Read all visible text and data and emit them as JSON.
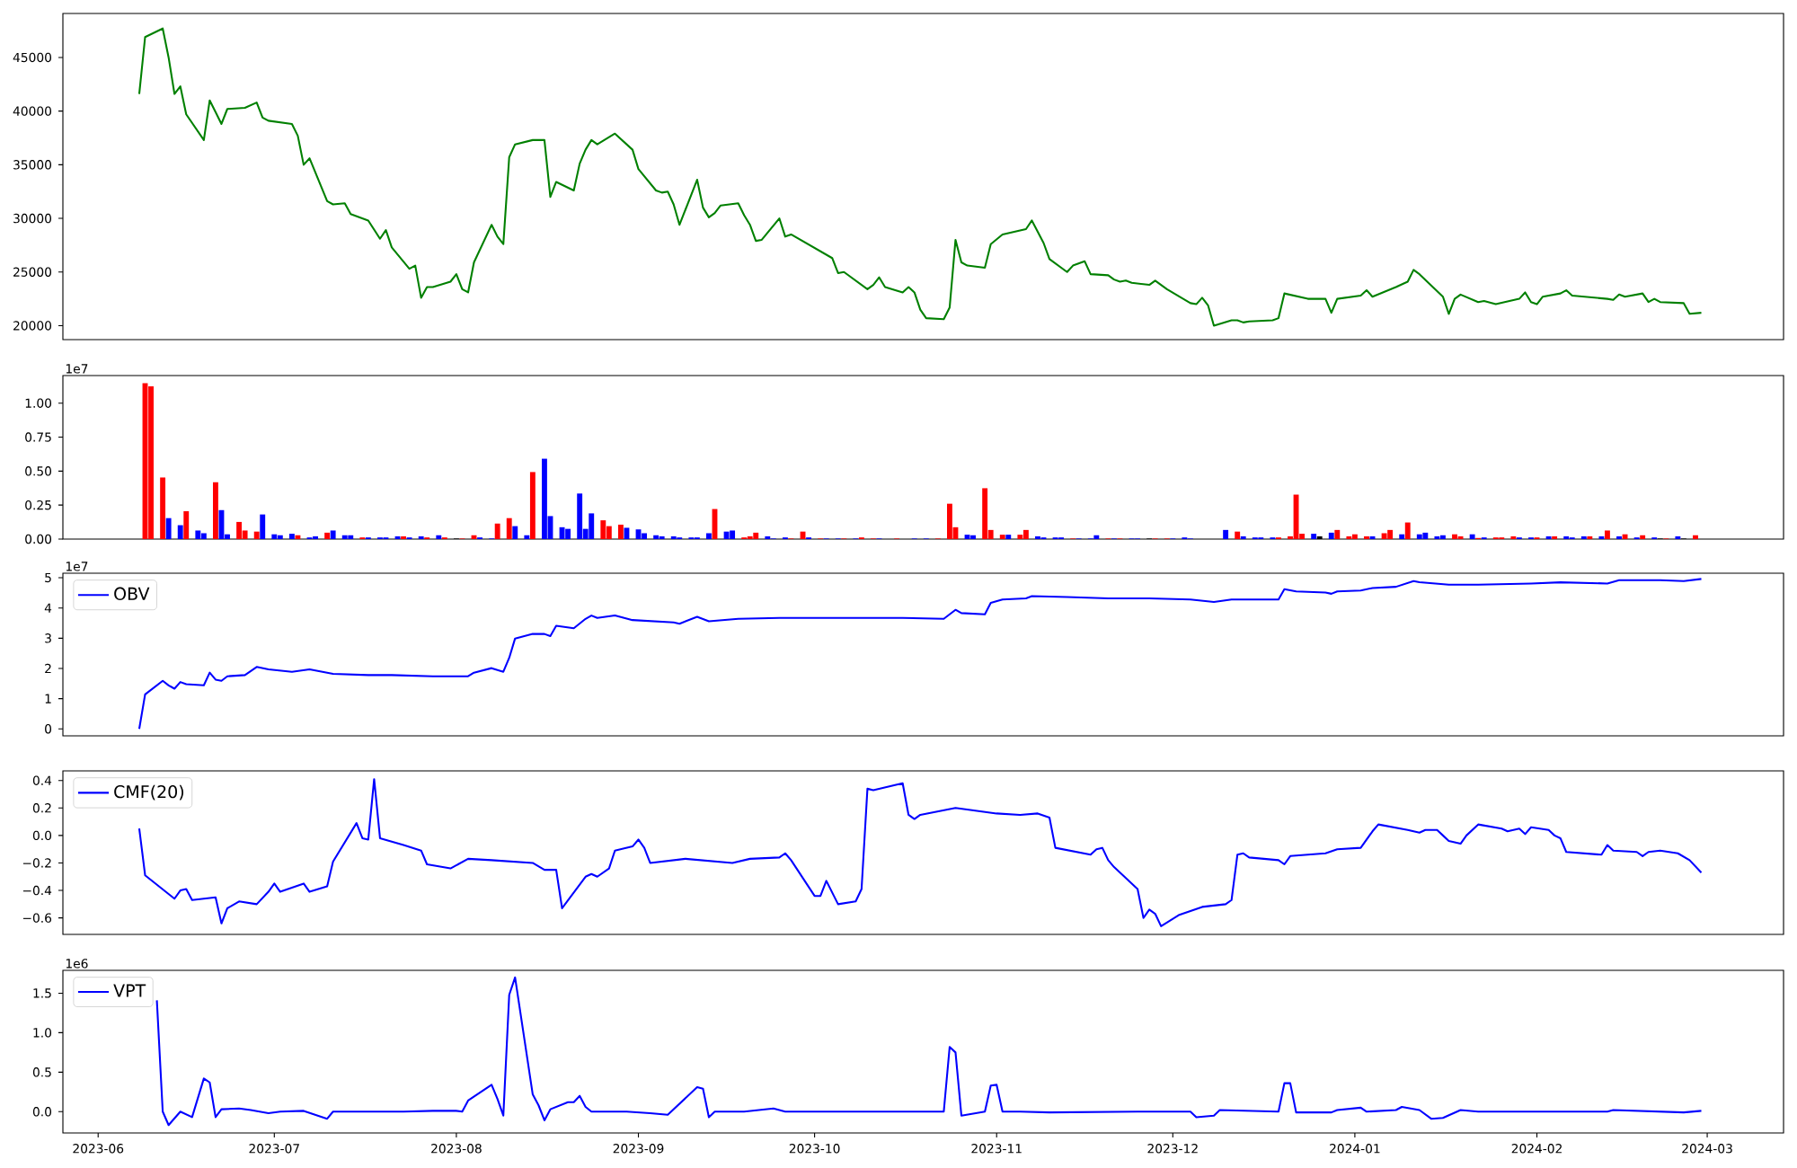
{
  "chart_data": [
    {
      "type": "line",
      "xlim": [
        "2023-05-26",
        "2024-03-14"
      ],
      "ylim": [
        18700,
        49100
      ],
      "yticks": [
        20000,
        25000,
        30000,
        35000,
        40000,
        45000
      ],
      "tick_labels": "y",
      "x": [
        "2023-06-08",
        "2023-06-09",
        "2023-06-12",
        "2023-06-13",
        "2023-06-14",
        "2023-06-15",
        "2023-06-16",
        "2023-06-19",
        "2023-06-20",
        "2023-06-21",
        "2023-06-22",
        "2023-06-23",
        "2023-06-26",
        "2023-06-28",
        "2023-06-29",
        "2023-06-30",
        "2023-07-04",
        "2023-07-05",
        "2023-07-06",
        "2023-07-07",
        "2023-07-10",
        "2023-07-11",
        "2023-07-13",
        "2023-07-14",
        "2023-07-17",
        "2023-07-19",
        "2023-07-20",
        "2023-07-21",
        "2023-07-24",
        "2023-07-25",
        "2023-07-26",
        "2023-07-27",
        "2023-07-28",
        "2023-07-31",
        "2023-08-01",
        "2023-08-02",
        "2023-08-03",
        "2023-08-04",
        "2023-08-07",
        "2023-08-08",
        "2023-08-09",
        "2023-08-10",
        "2023-08-11",
        "2023-08-14",
        "2023-08-16",
        "2023-08-17",
        "2023-08-18",
        "2023-08-21",
        "2023-08-22",
        "2023-08-23",
        "2023-08-24",
        "2023-08-25",
        "2023-08-28",
        "2023-08-31",
        "2023-09-01",
        "2023-09-04",
        "2023-09-05",
        "2023-09-06",
        "2023-09-07",
        "2023-09-08",
        "2023-09-11",
        "2023-09-12",
        "2023-09-13",
        "2023-09-14",
        "2023-09-15",
        "2023-09-18",
        "2023-09-19",
        "2023-09-20",
        "2023-09-21",
        "2023-09-22",
        "2023-09-25",
        "2023-09-26",
        "2023-09-27",
        "2023-10-04",
        "2023-10-05",
        "2023-10-06",
        "2023-10-10",
        "2023-10-11",
        "2023-10-12",
        "2023-10-13",
        "2023-10-16",
        "2023-10-17",
        "2023-10-18",
        "2023-10-19",
        "2023-10-20",
        "2023-10-23",
        "2023-10-24",
        "2023-10-25",
        "2023-10-26",
        "2023-10-27",
        "2023-10-30",
        "2023-10-31",
        "2023-11-02",
        "2023-11-06",
        "2023-11-07",
        "2023-11-09",
        "2023-11-10",
        "2023-11-13",
        "2023-11-14",
        "2023-11-16",
        "2023-11-17",
        "2023-11-20",
        "2023-11-21",
        "2023-11-22",
        "2023-11-23",
        "2023-11-24",
        "2023-11-27",
        "2023-11-28",
        "2023-11-30",
        "2023-12-04",
        "2023-12-05",
        "2023-12-06",
        "2023-12-07",
        "2023-12-08",
        "2023-12-11",
        "2023-12-12",
        "2023-12-13",
        "2023-12-14",
        "2023-12-18",
        "2023-12-19",
        "2023-12-20",
        "2023-12-24",
        "2023-12-27",
        "2023-12-28",
        "2023-12-29",
        "2024-01-02",
        "2024-01-03",
        "2024-01-04",
        "2024-01-08",
        "2024-01-10",
        "2024-01-11",
        "2024-01-12",
        "2024-01-16",
        "2024-01-17",
        "2024-01-18",
        "2024-01-19",
        "2024-01-22",
        "2024-01-23",
        "2024-01-25",
        "2024-01-29",
        "2024-01-30",
        "2024-01-31",
        "2024-02-01",
        "2024-02-02",
        "2024-02-05",
        "2024-02-06",
        "2024-02-07",
        "2024-02-13",
        "2024-02-14",
        "2024-02-15",
        "2024-02-16",
        "2024-02-19",
        "2024-02-20",
        "2024-02-21",
        "2024-02-22",
        "2024-02-26",
        "2024-02-27",
        "2024-02-29"
      ],
      "series": [
        {
          "color": "#008000",
          "values": [
            41600,
            46900,
            47700,
            45000,
            41600,
            42300,
            39700,
            37300,
            41000,
            39900,
            38800,
            40200,
            40300,
            40800,
            39400,
            39100,
            38800,
            37700,
            35000,
            35600,
            31600,
            31300,
            31400,
            30400,
            29800,
            28100,
            28900,
            27300,
            25300,
            25600,
            22600,
            23600,
            23600,
            24100,
            24800,
            23400,
            23100,
            25900,
            29400,
            28300,
            27600,
            35700,
            36900,
            37300,
            37300,
            32000,
            33400,
            32600,
            35100,
            36400,
            37300,
            36900,
            37900,
            36400,
            34600,
            32600,
            32400,
            32500,
            31300,
            29400,
            33600,
            31000,
            30100,
            30500,
            31200,
            31400,
            30300,
            29400,
            27900,
            28000,
            30000,
            28300,
            28500,
            26300,
            24900,
            25000,
            23400,
            23800,
            24500,
            23600,
            23100,
            23600,
            23100,
            21500,
            20700,
            20600,
            21700,
            28000,
            25900,
            25600,
            25400,
            27600,
            28500,
            29000,
            29800,
            27700,
            26200,
            25000,
            25600,
            26000,
            24800,
            24700,
            24300,
            24100,
            24200,
            24000,
            23800,
            24200,
            23400,
            22100,
            22000,
            22600,
            21900,
            20000,
            20500,
            20500,
            20300,
            20400,
            20500,
            20700,
            23000,
            22500,
            22500,
            21200,
            22500,
            22800,
            23300,
            22700,
            23600,
            24100,
            25200,
            24800,
            22700,
            21100,
            22500,
            22900,
            22200,
            22300,
            22000,
            22500,
            23100,
            22200,
            22000,
            22700,
            23000,
            23300,
            22800,
            22500,
            22400,
            22900,
            22700,
            23000,
            22200,
            22500,
            22200,
            22100,
            21100,
            21200
          ]
        }
      ]
    },
    {
      "type": "bar",
      "xlim": [
        "2023-05-26",
        "2024-03-14"
      ],
      "ylim": [
        0,
        1.203
      ],
      "tick_labels": "y",
      "yticks": [
        {
          "value": 0,
          "label": "0.00"
        },
        0.25,
        {
          "value": 0.5,
          "label": "0.50"
        },
        0.75,
        {
          "value": 1,
          "label": "1.00"
        }
      ],
      "annotations": [
        "1e7"
      ],
      "x": [
        "2023-06-09",
        "2023-06-10",
        "2023-06-12",
        "2023-06-13",
        "2023-06-15",
        "2023-06-16",
        "2023-06-18",
        "2023-06-19",
        "2023-06-21",
        "2023-06-22",
        "2023-06-23",
        "2023-06-25",
        "2023-06-26",
        "2023-06-28",
        "2023-06-29",
        "2023-07-01",
        "2023-07-02",
        "2023-07-04",
        "2023-07-05",
        "2023-07-07",
        "2023-07-08",
        "2023-07-10",
        "2023-07-11",
        "2023-07-13",
        "2023-07-14",
        "2023-07-16",
        "2023-07-17",
        "2023-07-19",
        "2023-07-20",
        "2023-07-22",
        "2023-07-23",
        "2023-07-24",
        "2023-07-26",
        "2023-07-27",
        "2023-07-29",
        "2023-07-30",
        "2023-08-01",
        "2023-08-02",
        "2023-08-04",
        "2023-08-05",
        "2023-08-07",
        "2023-08-08",
        "2023-08-10",
        "2023-08-11",
        "2023-08-13",
        "2023-08-14",
        "2023-08-16",
        "2023-08-17",
        "2023-08-19",
        "2023-08-20",
        "2023-08-22",
        "2023-08-23",
        "2023-08-24",
        "2023-08-26",
        "2023-08-27",
        "2023-08-29",
        "2023-08-30",
        "2023-09-01",
        "2023-09-02",
        "2023-09-04",
        "2023-09-05",
        "2023-09-07",
        "2023-09-08",
        "2023-09-10",
        "2023-09-11",
        "2023-09-13",
        "2023-09-14",
        "2023-09-16",
        "2023-09-17",
        "2023-09-19",
        "2023-09-20",
        "2023-09-21",
        "2023-09-23",
        "2023-09-24",
        "2023-09-26",
        "2023-09-27",
        "2023-09-29",
        "2023-09-30",
        "2023-10-02",
        "2023-10-03",
        "2023-10-05",
        "2023-10-06",
        "2023-10-08",
        "2023-10-09",
        "2023-10-11",
        "2023-10-12",
        "2023-10-15",
        "2023-10-18",
        "2023-10-20",
        "2023-10-22",
        "2023-10-24",
        "2023-10-25",
        "2023-10-27",
        "2023-10-28",
        "2023-10-30",
        "2023-10-31",
        "2023-11-02",
        "2023-11-03",
        "2023-11-05",
        "2023-11-06",
        "2023-11-08",
        "2023-11-09",
        "2023-11-11",
        "2023-11-12",
        "2023-11-14",
        "2023-11-15",
        "2023-11-17",
        "2023-11-18",
        "2023-11-20",
        "2023-11-21",
        "2023-11-22",
        "2023-11-24",
        "2023-11-25",
        "2023-11-27",
        "2023-11-28",
        "2023-11-30",
        "2023-12-01",
        "2023-12-03",
        "2023-12-04",
        "2023-12-10",
        "2023-12-12",
        "2023-12-13",
        "2023-12-15",
        "2023-12-16",
        "2023-12-18",
        "2023-12-19",
        "2023-12-21",
        "2023-12-22",
        "2023-12-23",
        "2023-12-25",
        "2023-12-26",
        "2023-12-28",
        "2023-12-29",
        "2023-12-31",
        "2024-01-01",
        "2024-01-03",
        "2024-01-04",
        "2024-01-06",
        "2024-01-07",
        "2024-01-09",
        "2024-01-10",
        "2024-01-12",
        "2024-01-13",
        "2024-01-15",
        "2024-01-16",
        "2024-01-18",
        "2024-01-19",
        "2024-01-21",
        "2024-01-22",
        "2024-01-23",
        "2024-01-25",
        "2024-01-26",
        "2024-01-28",
        "2024-01-29",
        "2024-01-31",
        "2024-02-01",
        "2024-02-03",
        "2024-02-04",
        "2024-02-06",
        "2024-02-07",
        "2024-02-09",
        "2024-02-10",
        "2024-02-12",
        "2024-02-13",
        "2024-02-15",
        "2024-02-16",
        "2024-02-18",
        "2024-02-19",
        "2024-02-21",
        "2024-02-22",
        "2024-02-23",
        "2024-02-25",
        "2024-02-26",
        "2024-02-28"
      ],
      "values": [
        1.147,
        1.123,
        0.453,
        0.154,
        0.102,
        0.205,
        0.063,
        0.043,
        0.418,
        0.213,
        0.035,
        0.126,
        0.063,
        0.055,
        0.181,
        0.035,
        0.028,
        0.039,
        0.028,
        0.012,
        0.02,
        0.047,
        0.063,
        0.028,
        0.028,
        0.012,
        0.012,
        0.012,
        0.012,
        0.02,
        0.02,
        0.012,
        0.02,
        0.012,
        0.028,
        0.012,
        0.004,
        0.004,
        0.028,
        0.012,
        0.004,
        0.114,
        0.154,
        0.095,
        0.028,
        0.493,
        0.591,
        0.169,
        0.087,
        0.075,
        0.335,
        0.075,
        0.189,
        0.138,
        0.095,
        0.106,
        0.083,
        0.071,
        0.043,
        0.028,
        0.02,
        0.02,
        0.012,
        0.012,
        0.012,
        0.043,
        0.221,
        0.055,
        0.063,
        0.012,
        0.02,
        0.047,
        0.02,
        0.004,
        0.012,
        0.004,
        0.055,
        0.012,
        0.004,
        0.004,
        0.004,
        0.004,
        0.004,
        0.012,
        0.004,
        0.004,
        0.004,
        0.004,
        0.004,
        0.004,
        0.26,
        0.087,
        0.032,
        0.028,
        0.374,
        0.067,
        0.032,
        0.032,
        0.032,
        0.067,
        0.02,
        0.012,
        0.012,
        0.012,
        0.004,
        0.004,
        0.004,
        0.028,
        0.004,
        0.004,
        0.004,
        0.004,
        0.004,
        0.004,
        0.004,
        0.004,
        0.004,
        0.012,
        0.004,
        0.067,
        0.055,
        0.02,
        0.012,
        0.012,
        0.012,
        0.012,
        0.02,
        0.327,
        0.039,
        0.039,
        0.02,
        0.047,
        0.067,
        0.02,
        0.035,
        0.02,
        0.02,
        0.043,
        0.067,
        0.035,
        0.122,
        0.035,
        0.047,
        0.02,
        0.028,
        0.035,
        0.02,
        0.035,
        0.008,
        0.012,
        0.012,
        0.012,
        0.02,
        0.012,
        0.012,
        0.012,
        0.02,
        0.02,
        0.02,
        0.012,
        0.02,
        0.02,
        0.02,
        0.063,
        0.02,
        0.035,
        0.012,
        0.028,
        0.012,
        0.004,
        0.004,
        0.02,
        0.004,
        0.028
      ],
      "colors": [
        "#ff0000",
        "#ff0000",
        "#ff0000",
        "#0000ff",
        "#0000ff",
        "#ff0000",
        "#0000ff",
        "#0000ff",
        "#ff0000",
        "#0000ff",
        "#0000ff",
        "#ff0000",
        "#ff0000",
        "#ff0000",
        "#0000ff",
        "#0000ff",
        "#0000ff",
        "#0000ff",
        "#ff0000",
        "#0000ff",
        "#0000ff",
        "#ff0000",
        "#0000ff",
        "#0000ff",
        "#0000ff",
        "#ff0000",
        "#0000ff",
        "#0000ff",
        "#0000ff",
        "#0000ff",
        "#ff0000",
        "#0000ff",
        "#0000ff",
        "#ff0000",
        "#0000ff",
        "#ff0000",
        "#000000",
        "#ff0000",
        "#ff0000",
        "#0000ff",
        "#0000ff",
        "#ff0000",
        "#ff0000",
        "#0000ff",
        "#0000ff",
        "#ff0000",
        "#0000ff",
        "#0000ff",
        "#0000ff",
        "#0000ff",
        "#0000ff",
        "#0000ff",
        "#0000ff",
        "#ff0000",
        "#ff0000",
        "#ff0000",
        "#0000ff",
        "#0000ff",
        "#0000ff",
        "#0000ff",
        "#0000ff",
        "#0000ff",
        "#0000ff",
        "#0000ff",
        "#0000ff",
        "#0000ff",
        "#ff0000",
        "#0000ff",
        "#0000ff",
        "#ff0000",
        "#ff0000",
        "#ff0000",
        "#0000ff",
        "#0000ff",
        "#0000ff",
        "#ff0000",
        "#ff0000",
        "#0000ff",
        "#ff0000",
        "#0000ff",
        "#0000ff",
        "#ff0000",
        "#0000ff",
        "#ff0000",
        "#ff0000",
        "#0000ff",
        "#ff0000",
        "#0000ff",
        "#0000ff",
        "#ff0000",
        "#ff0000",
        "#ff0000",
        "#0000ff",
        "#0000ff",
        "#ff0000",
        "#ff0000",
        "#ff0000",
        "#0000ff",
        "#ff0000",
        "#ff0000",
        "#0000ff",
        "#0000ff",
        "#0000ff",
        "#0000ff",
        "#ff0000",
        "#0000ff",
        "#0000ff",
        "#0000ff",
        "#ff0000",
        "#0000ff",
        "#ff0000",
        "#0000ff",
        "#0000ff",
        "#000000",
        "#ff0000",
        "#ff0000",
        "#0000ff",
        "#0000ff",
        "#0000ff",
        "#0000ff",
        "#ff0000",
        "#0000ff",
        "#0000ff",
        "#0000ff",
        "#0000ff",
        "#ff0000",
        "#ff0000",
        "#ff0000",
        "#ff0000",
        "#0000ff",
        "#000000",
        "#0000ff",
        "#ff0000",
        "#ff0000",
        "#ff0000",
        "#ff0000",
        "#0000ff",
        "#ff0000",
        "#ff0000",
        "#0000ff",
        "#ff0000",
        "#0000ff",
        "#0000ff",
        "#0000ff",
        "#0000ff",
        "#ff0000",
        "#ff0000",
        "#0000ff",
        "#ff0000",
        "#0000ff",
        "#ff0000",
        "#ff0000",
        "#ff0000",
        "#0000ff",
        "#0000ff",
        "#ff0000",
        "#0000ff",
        "#ff0000",
        "#0000ff",
        "#0000ff",
        "#0000ff",
        "#ff0000",
        "#0000ff",
        "#ff0000",
        "#0000ff",
        "#ff0000",
        "#0000ff",
        "#ff0000",
        "#0000ff",
        "#000000",
        "#ff0000",
        "#0000ff",
        "#000000",
        "#ff0000"
      ]
    },
    {
      "type": "line",
      "xlim": [
        "2023-05-26",
        "2024-03-14"
      ],
      "ylim": [
        -0.23,
        5.15
      ],
      "tick_labels": "y",
      "legend": "top left",
      "yticks": [
        0,
        1,
        2,
        3,
        4,
        5
      ],
      "annotations": [
        "1e7"
      ],
      "x": [
        "2023-06-08",
        "2023-06-09",
        "2023-06-12",
        "2023-06-13",
        "2023-06-14",
        "2023-06-15",
        "2023-06-16",
        "2023-06-19",
        "2023-06-20",
        "2023-06-21",
        "2023-06-22",
        "2023-06-23",
        "2023-06-26",
        "2023-06-28",
        "2023-06-30",
        "2023-07-04",
        "2023-07-07",
        "2023-07-11",
        "2023-07-17",
        "2023-07-21",
        "2023-07-28",
        "2023-08-03",
        "2023-08-04",
        "2023-08-07",
        "2023-08-09",
        "2023-08-10",
        "2023-08-11",
        "2023-08-14",
        "2023-08-16",
        "2023-08-17",
        "2023-08-18",
        "2023-08-21",
        "2023-08-23",
        "2023-08-24",
        "2023-08-25",
        "2023-08-28",
        "2023-08-31",
        "2023-09-07",
        "2023-09-08",
        "2023-09-11",
        "2023-09-13",
        "2023-09-18",
        "2023-09-25",
        "2023-10-04",
        "2023-10-16",
        "2023-10-23",
        "2023-10-25",
        "2023-10-26",
        "2023-10-30",
        "2023-10-31",
        "2023-11-02",
        "2023-11-06",
        "2023-11-07",
        "2023-11-13",
        "2023-11-20",
        "2023-11-27",
        "2023-12-04",
        "2023-12-08",
        "2023-12-11",
        "2023-12-19",
        "2023-12-20",
        "2023-12-22",
        "2023-12-27",
        "2023-12-28",
        "2023-12-29",
        "2024-01-02",
        "2024-01-04",
        "2024-01-08",
        "2024-01-11",
        "2024-01-12",
        "2024-01-17",
        "2024-01-22",
        "2024-01-31",
        "2024-02-05",
        "2024-02-13",
        "2024-02-15",
        "2024-02-22",
        "2024-02-26",
        "2024-02-29"
      ],
      "series": [
        {
          "name": "OBV",
          "color": "#0000ff",
          "values": [
            0,
            1.14,
            1.59,
            1.44,
            1.33,
            1.55,
            1.48,
            1.44,
            1.86,
            1.63,
            1.59,
            1.74,
            1.78,
            2.05,
            1.97,
            1.89,
            1.97,
            1.82,
            1.78,
            1.78,
            1.74,
            1.74,
            1.86,
            2.01,
            1.89,
            2.35,
            2.99,
            3.14,
            3.14,
            3.07,
            3.41,
            3.33,
            3.64,
            3.75,
            3.67,
            3.75,
            3.6,
            3.52,
            3.48,
            3.71,
            3.56,
            3.64,
            3.67,
            3.67,
            3.67,
            3.64,
            3.94,
            3.83,
            3.79,
            4.17,
            4.28,
            4.32,
            4.39,
            4.36,
            4.32,
            4.32,
            4.28,
            4.2,
            4.28,
            4.28,
            4.62,
            4.55,
            4.51,
            4.47,
            4.55,
            4.58,
            4.66,
            4.7,
            4.89,
            4.85,
            4.77,
            4.77,
            4.81,
            4.85,
            4.81,
            4.92,
            4.92,
            4.89,
            4.96
          ]
        }
      ]
    },
    {
      "type": "line",
      "xlim": [
        "2023-05-26",
        "2024-03-14"
      ],
      "ylim": [
        -0.72,
        0.47
      ],
      "tick_labels": "y",
      "legend": "top left",
      "yticks": [
        {
          "value": -0.6,
          "label": "−0.6"
        },
        {
          "value": -0.4,
          "label": "−0.4"
        },
        {
          "value": -0.2,
          "label": "−0.2"
        },
        {
          "value": 0,
          "label": "0.0"
        },
        0.2,
        0.4
      ],
      "x": [
        "2023-06-08",
        "2023-06-09",
        "2023-06-14",
        "2023-06-15",
        "2023-06-16",
        "2023-06-17",
        "2023-06-21",
        "2023-06-22",
        "2023-06-23",
        "2023-06-25",
        "2023-06-28",
        "2023-06-30",
        "2023-07-01",
        "2023-07-02",
        "2023-07-06",
        "2023-07-07",
        "2023-07-10",
        "2023-07-11",
        "2023-07-15",
        "2023-07-16",
        "2023-07-17",
        "2023-07-18",
        "2023-07-19",
        "2023-07-23",
        "2023-07-26",
        "2023-07-27",
        "2023-07-31",
        "2023-08-03",
        "2023-08-07",
        "2023-08-14",
        "2023-08-16",
        "2023-08-18",
        "2023-08-19",
        "2023-08-23",
        "2023-08-24",
        "2023-08-25",
        "2023-08-27",
        "2023-08-28",
        "2023-08-31",
        "2023-09-01",
        "2023-09-02",
        "2023-09-03",
        "2023-09-09",
        "2023-09-17",
        "2023-09-20",
        "2023-09-25",
        "2023-09-26",
        "2023-09-27",
        "2023-10-01",
        "2023-10-02",
        "2023-10-03",
        "2023-10-05",
        "2023-10-08",
        "2023-10-09",
        "2023-10-10",
        "2023-10-11",
        "2023-10-16",
        "2023-10-17",
        "2023-10-18",
        "2023-10-19",
        "2023-10-25",
        "2023-11-01",
        "2023-11-05",
        "2023-11-08",
        "2023-11-10",
        "2023-11-11",
        "2023-11-17",
        "2023-11-18",
        "2023-11-19",
        "2023-11-20",
        "2023-11-21",
        "2023-11-25",
        "2023-11-26",
        "2023-11-27",
        "2023-11-28",
        "2023-11-29",
        "2023-12-02",
        "2023-12-04",
        "2023-12-06",
        "2023-12-10",
        "2023-12-11",
        "2023-12-12",
        "2023-12-13",
        "2023-12-14",
        "2023-12-19",
        "2023-12-20",
        "2023-12-21",
        "2023-12-27",
        "2023-12-29",
        "2024-01-02",
        "2024-01-04",
        "2024-01-05",
        "2024-01-10",
        "2024-01-12",
        "2024-01-13",
        "2024-01-15",
        "2024-01-16",
        "2024-01-17",
        "2024-01-19",
        "2024-01-20",
        "2024-01-22",
        "2024-01-26",
        "2024-01-27",
        "2024-01-29",
        "2024-01-30",
        "2024-01-31",
        "2024-02-03",
        "2024-02-04",
        "2024-02-05",
        "2024-02-06",
        "2024-02-12",
        "2024-02-13",
        "2024-02-14",
        "2024-02-18",
        "2024-02-19",
        "2024-02-20",
        "2024-02-22",
        "2024-02-25",
        "2024-02-27",
        "2024-02-29"
      ],
      "series": [
        {
          "name": "CMF(20)",
          "color": "#0000ff",
          "values": [
            0.05,
            -0.29,
            -0.46,
            -0.4,
            -0.39,
            -0.47,
            -0.45,
            -0.64,
            -0.53,
            -0.48,
            -0.5,
            -0.41,
            -0.35,
            -0.41,
            -0.35,
            -0.41,
            -0.37,
            -0.19,
            0.09,
            -0.02,
            -0.03,
            0.41,
            -0.02,
            -0.07,
            -0.11,
            -0.21,
            -0.24,
            -0.17,
            -0.18,
            -0.2,
            -0.25,
            -0.25,
            -0.53,
            -0.3,
            -0.28,
            -0.3,
            -0.24,
            -0.11,
            -0.08,
            -0.03,
            -0.09,
            -0.2,
            -0.17,
            -0.2,
            -0.17,
            -0.16,
            -0.13,
            -0.18,
            -0.44,
            -0.44,
            -0.33,
            -0.5,
            -0.48,
            -0.39,
            0.34,
            0.33,
            0.38,
            0.15,
            0.12,
            0.15,
            0.2,
            0.16,
            0.15,
            0.16,
            0.13,
            -0.09,
            -0.14,
            -0.1,
            -0.09,
            -0.18,
            -0.23,
            -0.39,
            -0.6,
            -0.54,
            -0.57,
            -0.66,
            -0.58,
            -0.55,
            -0.52,
            -0.5,
            -0.47,
            -0.14,
            -0.13,
            -0.16,
            -0.18,
            -0.21,
            -0.15,
            -0.13,
            -0.1,
            -0.09,
            0.03,
            0.08,
            0.04,
            0.02,
            0.04,
            0.04,
            0.0,
            -0.04,
            -0.06,
            0.0,
            0.08,
            0.05,
            0.03,
            0.05,
            0.01,
            0.06,
            0.04,
            0.0,
            -0.02,
            -0.12,
            -0.14,
            -0.07,
            -0.11,
            -0.12,
            -0.15,
            -0.12,
            -0.11,
            -0.13,
            -0.18,
            -0.27
          ]
        }
      ]
    },
    {
      "type": "line",
      "xlim": [
        "2023-05-26",
        "2024-03-14"
      ],
      "ylim": [
        -0.27,
        1.79
      ],
      "legend": "top left",
      "xticks": [
        "2023-06",
        "2023-07",
        "2023-08",
        "2023-09",
        "2023-10",
        "2023-11",
        "2023-12",
        "2024-01",
        "2024-02",
        "2024-03"
      ],
      "yticks": [
        {
          "value": 0,
          "label": "0.0"
        },
        0.5,
        {
          "value": 1,
          "label": "1.0"
        },
        1.5
      ],
      "annotations": [
        "1e6"
      ],
      "x": [
        "2023-06-11",
        "2023-06-12",
        "2023-06-13",
        "2023-06-15",
        "2023-06-17",
        "2023-06-19",
        "2023-06-20",
        "2023-06-21",
        "2023-06-22",
        "2023-06-25",
        "2023-06-27",
        "2023-06-30",
        "2023-07-02",
        "2023-07-06",
        "2023-07-10",
        "2023-07-11",
        "2023-07-20",
        "2023-07-23",
        "2023-07-28",
        "2023-08-01",
        "2023-08-02",
        "2023-08-03",
        "2023-08-07",
        "2023-08-08",
        "2023-08-09",
        "2023-08-10",
        "2023-08-11",
        "2023-08-14",
        "2023-08-15",
        "2023-08-16",
        "2023-08-17",
        "2023-08-20",
        "2023-08-21",
        "2023-08-22",
        "2023-08-23",
        "2023-08-24",
        "2023-08-30",
        "2023-09-03",
        "2023-09-06",
        "2023-09-11",
        "2023-09-12",
        "2023-09-13",
        "2023-09-14",
        "2023-09-19",
        "2023-09-24",
        "2023-09-26",
        "2023-10-04",
        "2023-10-14",
        "2023-10-23",
        "2023-10-24",
        "2023-10-25",
        "2023-10-26",
        "2023-10-30",
        "2023-10-31",
        "2023-11-01",
        "2023-11-02",
        "2023-11-05",
        "2023-11-10",
        "2023-11-25",
        "2023-12-04",
        "2023-12-05",
        "2023-12-08",
        "2023-12-09",
        "2023-12-19",
        "2023-12-20",
        "2023-12-21",
        "2023-12-22",
        "2023-12-28",
        "2023-12-29",
        "2024-01-02",
        "2024-01-03",
        "2024-01-08",
        "2024-01-09",
        "2024-01-12",
        "2024-01-14",
        "2024-01-16",
        "2024-01-19",
        "2024-01-22",
        "2024-01-31",
        "2024-02-13",
        "2024-02-14",
        "2024-02-22",
        "2024-02-26",
        "2024-02-29"
      ],
      "series": [
        {
          "name": "VPT",
          "color": "#0000ff",
          "values": [
            1.41,
            0,
            -0.17,
            0,
            -0.07,
            0.42,
            0.37,
            -0.07,
            0.03,
            0.04,
            0.02,
            -0.02,
            0,
            0.01,
            -0.09,
            0,
            0,
            0,
            0.01,
            0.01,
            0,
            0.14,
            0.34,
            0.16,
            -0.05,
            1.48,
            1.7,
            0.22,
            0.08,
            -0.11,
            0.03,
            0.12,
            0.12,
            0.2,
            0.06,
            0,
            0,
            -0.02,
            -0.04,
            0.31,
            0.29,
            -0.07,
            0,
            0,
            0.04,
            0,
            0,
            0,
            0,
            0.82,
            0.75,
            -0.05,
            0,
            0.33,
            0.34,
            0,
            0,
            -0.01,
            0,
            0,
            -0.07,
            -0.05,
            0.02,
            0,
            0.36,
            0.36,
            -0.01,
            -0.01,
            0.02,
            0.05,
            0,
            0.02,
            0.06,
            0.02,
            -0.09,
            -0.08,
            0.02,
            0,
            0,
            0,
            0.02,
            0,
            -0.01,
            0.01
          ]
        }
      ]
    }
  ]
}
